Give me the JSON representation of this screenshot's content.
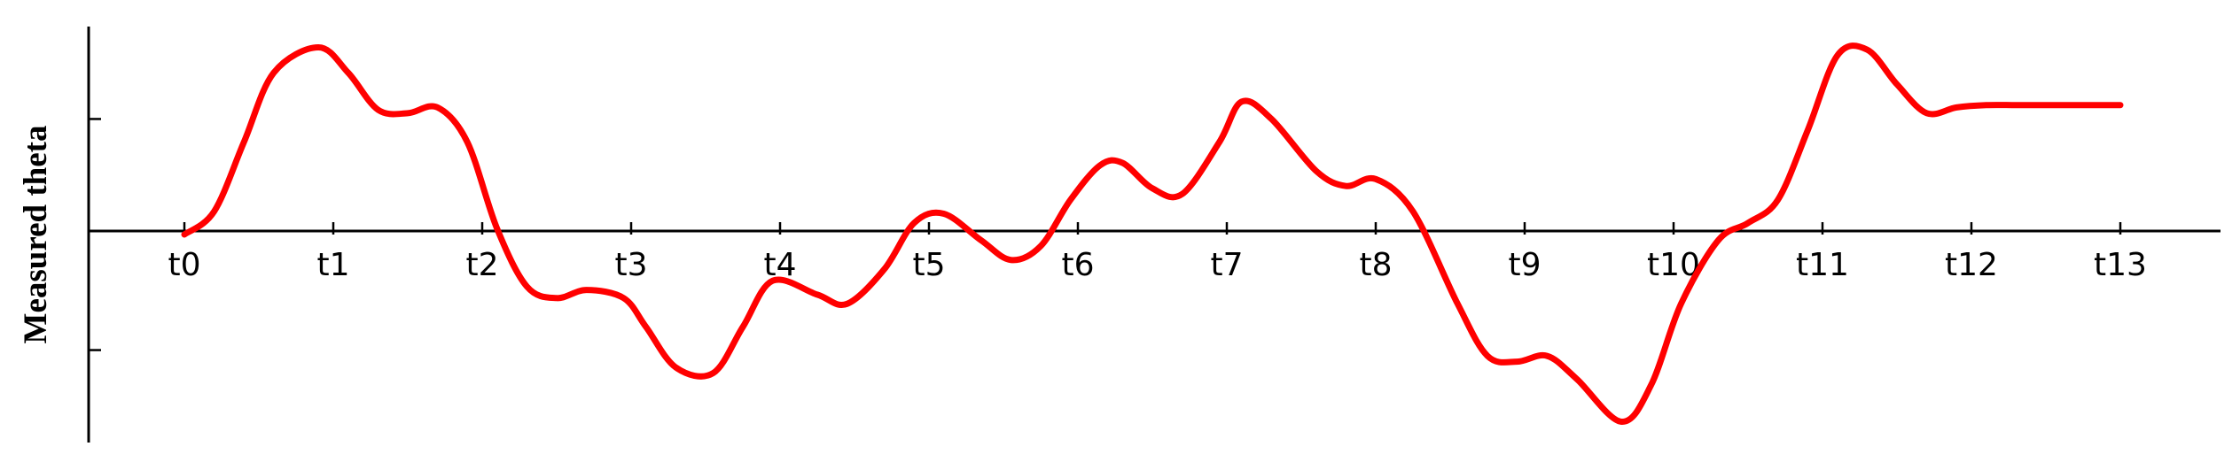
{
  "chart_data": {
    "type": "line",
    "title": "",
    "xlabel": "",
    "ylabel": "Measured theta",
    "categories": [
      "t0",
      "t1",
      "t2",
      "t3",
      "t4",
      "t5",
      "t6",
      "t7",
      "t8",
      "t9",
      "t10",
      "t11",
      "t12",
      "t13"
    ],
    "ylim": [
      -1.8,
      1.8
    ],
    "yticks": [
      -1,
      0,
      1
    ],
    "grid": false,
    "legend": "none",
    "series": [
      {
        "name": "theta",
        "color": "#ff0000",
        "x": [
          0.0,
          0.2,
          0.4,
          0.6,
          0.9,
          1.1,
          1.3,
          1.5,
          1.7,
          1.9,
          2.1,
          2.3,
          2.5,
          2.7,
          2.95,
          3.1,
          3.3,
          3.55,
          3.75,
          3.95,
          4.25,
          4.45,
          4.7,
          4.9,
          5.1,
          5.35,
          5.55,
          5.75,
          5.95,
          6.15,
          6.3,
          6.5,
          6.7,
          6.95,
          7.1,
          7.3,
          7.6,
          7.8,
          8.0,
          8.25,
          8.55,
          8.75,
          8.95,
          9.15,
          9.35,
          9.65,
          9.85,
          10.05,
          10.3,
          10.5,
          10.7,
          10.9,
          11.1,
          11.3,
          11.5,
          11.7,
          11.9,
          12.1,
          12.3,
          12.5,
          12.7,
          12.85,
          13.0
        ],
        "values": [
          0.0,
          0.2,
          0.8,
          1.4,
          1.62,
          1.4,
          1.08,
          1.05,
          1.1,
          0.8,
          0.05,
          -0.45,
          -0.55,
          -0.48,
          -0.55,
          -0.8,
          -1.15,
          -1.2,
          -0.8,
          -0.4,
          -0.52,
          -0.6,
          -0.3,
          0.1,
          0.18,
          -0.05,
          -0.22,
          -0.1,
          0.3,
          0.6,
          0.62,
          0.4,
          0.35,
          0.8,
          1.15,
          1.0,
          0.55,
          0.42,
          0.48,
          0.2,
          -0.6,
          -1.05,
          -1.1,
          -1.05,
          -1.25,
          -1.62,
          -1.3,
          -0.6,
          -0.05,
          0.1,
          0.3,
          0.9,
          1.55,
          1.6,
          1.3,
          1.05,
          1.1,
          1.12,
          1.12,
          1.12,
          1.12,
          1.12,
          1.12
        ]
      }
    ]
  }
}
